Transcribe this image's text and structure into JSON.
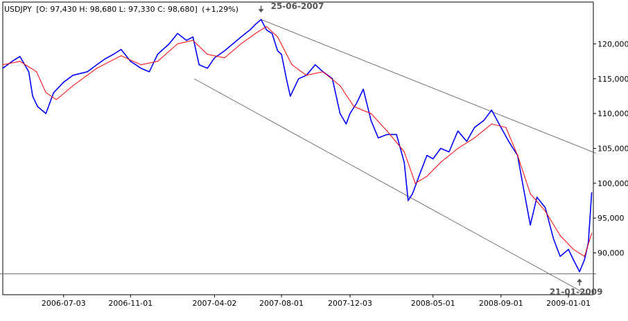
{
  "header": {
    "symbol": "USDJPY",
    "ohlc": "[O: 97,430  H: 98,680  L: 97,330  C: 98,680]",
    "change": "(+1,29%)"
  },
  "annotations": {
    "top": "25-06-2007",
    "bottom": "21-01-2009"
  },
  "colors": {
    "price": "#0000ff",
    "moving_average": "#ff0000",
    "trendline": "#000000",
    "axis": "#000000",
    "background": "#ffffff",
    "label_text": "#000000",
    "marker_text": "#555555"
  },
  "chart_data": {
    "type": "line",
    "title": "USDJPY",
    "xlabel": "",
    "ylabel": "",
    "ylim": [
      84.0,
      126.0
    ],
    "x_ticks": [
      "2006-07-03",
      "2006-11-01",
      "2007-04-02",
      "2007-08-01",
      "2007-12-03",
      "2008-05-01",
      "2008-09-01",
      "2009-01-01"
    ],
    "y_ticks": [
      "120,000",
      "115,000",
      "110,000",
      "105,000",
      "100,000",
      "95,000",
      "90,000"
    ],
    "y_tick_values": [
      120,
      115,
      110,
      105,
      100,
      95,
      90
    ],
    "grid": false,
    "legend": "none",
    "x_range": [
      "2006-03-15",
      "2009-02-15"
    ],
    "series": [
      {
        "role": "price",
        "x": [
          "2006-03-15",
          "2006-04-01",
          "2006-04-15",
          "2006-05-01",
          "2006-05-08",
          "2006-05-17",
          "2006-06-01",
          "2006-06-15",
          "2006-07-03",
          "2006-07-20",
          "2006-08-15",
          "2006-09-01",
          "2006-09-15",
          "2006-10-01",
          "2006-10-15",
          "2006-11-01",
          "2006-11-20",
          "2006-12-05",
          "2006-12-20",
          "2007-01-10",
          "2007-01-25",
          "2007-02-10",
          "2007-02-22",
          "2007-03-05",
          "2007-03-20",
          "2007-04-02",
          "2007-04-20",
          "2007-05-05",
          "2007-05-20",
          "2007-06-05",
          "2007-06-15",
          "2007-06-25",
          "2007-07-05",
          "2007-07-15",
          "2007-07-25",
          "2007-08-01",
          "2007-08-10",
          "2007-08-17",
          "2007-09-01",
          "2007-09-15",
          "2007-10-01",
          "2007-10-15",
          "2007-11-01",
          "2007-11-15",
          "2007-11-26",
          "2007-12-03",
          "2007-12-15",
          "2007-12-27",
          "2008-01-10",
          "2008-01-23",
          "2008-02-08",
          "2008-02-25",
          "2008-03-10",
          "2008-03-17",
          "2008-03-25",
          "2008-04-08",
          "2008-04-20",
          "2008-05-01",
          "2008-05-15",
          "2008-05-30",
          "2008-06-15",
          "2008-07-01",
          "2008-07-15",
          "2008-08-01",
          "2008-08-15",
          "2008-09-01",
          "2008-09-15",
          "2008-10-01",
          "2008-10-10",
          "2008-10-24",
          "2008-11-05",
          "2008-11-20",
          "2008-12-05",
          "2008-12-17",
          "2009-01-01",
          "2009-01-10",
          "2009-01-21",
          "2009-01-30",
          "2009-02-06",
          "2009-02-12"
        ],
        "values": [
          116.5,
          117.5,
          118.2,
          116.0,
          112.5,
          111.0,
          110.0,
          113.0,
          114.5,
          115.5,
          116.0,
          117.0,
          117.8,
          118.5,
          119.2,
          117.5,
          116.5,
          116.0,
          118.5,
          120.0,
          121.5,
          120.5,
          121.0,
          117.0,
          116.5,
          118.0,
          119.0,
          120.0,
          121.0,
          122.0,
          122.8,
          123.5,
          122.0,
          121.5,
          119.0,
          118.5,
          115.0,
          112.5,
          115.0,
          115.5,
          117.0,
          116.0,
          115.0,
          110.0,
          108.5,
          110.0,
          111.5,
          113.5,
          109.0,
          106.5,
          107.0,
          107.0,
          103.0,
          97.5,
          98.5,
          101.5,
          104.0,
          103.5,
          105.0,
          104.5,
          107.5,
          106.0,
          108.0,
          109.0,
          110.5,
          108.0,
          106.0,
          104.0,
          100.0,
          94.0,
          98.0,
          96.5,
          92.0,
          89.5,
          90.5,
          89.0,
          87.3,
          89.0,
          91.5,
          98.68
        ]
      },
      {
        "role": "moving_average",
        "x": [
          "2006-03-15",
          "2006-04-15",
          "2006-05-15",
          "2006-06-01",
          "2006-06-20",
          "2006-07-20",
          "2006-09-01",
          "2006-10-15",
          "2006-11-20",
          "2006-12-20",
          "2007-01-25",
          "2007-02-22",
          "2007-03-20",
          "2007-04-20",
          "2007-05-20",
          "2007-06-15",
          "2007-07-05",
          "2007-07-25",
          "2007-08-20",
          "2007-09-15",
          "2007-10-15",
          "2007-11-15",
          "2007-12-10",
          "2008-01-10",
          "2008-02-08",
          "2008-03-10",
          "2008-03-30",
          "2008-04-20",
          "2008-05-15",
          "2008-06-15",
          "2008-07-15",
          "2008-08-15",
          "2008-09-10",
          "2008-10-01",
          "2008-10-24",
          "2008-11-20",
          "2008-12-17",
          "2009-01-10",
          "2009-01-30",
          "2009-02-12"
        ],
        "values": [
          117.0,
          117.5,
          116.0,
          113.0,
          112.0,
          114.0,
          116.5,
          118.3,
          117.0,
          117.5,
          120.0,
          120.5,
          118.5,
          118.0,
          120.0,
          121.5,
          122.5,
          121.0,
          117.0,
          115.5,
          116.0,
          114.0,
          111.0,
          110.0,
          107.5,
          104.5,
          100.0,
          101.0,
          103.0,
          105.0,
          106.5,
          108.5,
          108.0,
          104.0,
          98.5,
          96.0,
          92.5,
          90.5,
          89.5,
          92.8
        ]
      }
    ],
    "trendlines": [
      {
        "x": [
          "2007-06-25",
          "2009-02-20"
        ],
        "values": [
          123.5,
          104.3
        ]
      },
      {
        "x": [
          "2007-02-24",
          "2009-02-04"
        ],
        "values": [
          115.0,
          84.0
        ]
      },
      {
        "x": [
          "2006-03-01",
          "2009-02-20"
        ],
        "values": [
          87.0,
          87.0
        ]
      }
    ],
    "markers": [
      {
        "label": "25-06-2007",
        "date": "2007-06-25",
        "value": 123.5,
        "direction": "down"
      },
      {
        "label": "21-01-2009",
        "date": "2009-01-21",
        "value": 87.3,
        "direction": "up"
      }
    ]
  }
}
